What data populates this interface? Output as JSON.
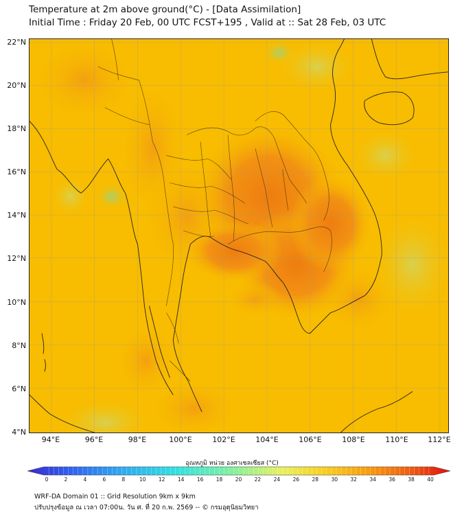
{
  "title_line1": "Temperature at 2m above ground(°C) - [Data Assimilation]",
  "title_line2": "Initial Time : Friday 20 Feb, 00 UTC FCST+195 , Valid at :: Sat 28 Feb, 03 UTC",
  "lat_labels": [
    "22°N",
    "20°N",
    "18°N",
    "16°N",
    "14°N",
    "12°N",
    "10°N",
    "8°N",
    "6°N",
    "4°N"
  ],
  "lon_labels": [
    "94°E",
    "96°E",
    "98°E",
    "100°E",
    "102°E",
    "104°E",
    "106°E",
    "108°E",
    "110°E",
    "112°E"
  ],
  "colorbar": {
    "title": "อุณหภูมิ หน่วย องศาเซลเซียส (°C)",
    "ticks": [
      "0",
      "2",
      "4",
      "6",
      "8",
      "10",
      "12",
      "14",
      "16",
      "18",
      "20",
      "22",
      "24",
      "26",
      "28",
      "30",
      "32",
      "34",
      "36",
      "38",
      "40"
    ]
  },
  "footer_line1": "WRF-DA Domain 01 :: Grid Resolution 9km x 9km",
  "footer_line2": "ปรับปรุงข้อมูล ณ เวลา 07:00น. วัน ศ. ที่ 20 ก.พ. 2569 -- © กรมอุตุนิยมวิทยา",
  "colors": {
    "background_field": "#f7b800",
    "hot_region": "#f08a10",
    "cool_patch": "#e6d040",
    "coast": "#222222",
    "border": "#3a2a10",
    "gridline": "#aaaaaa"
  }
}
